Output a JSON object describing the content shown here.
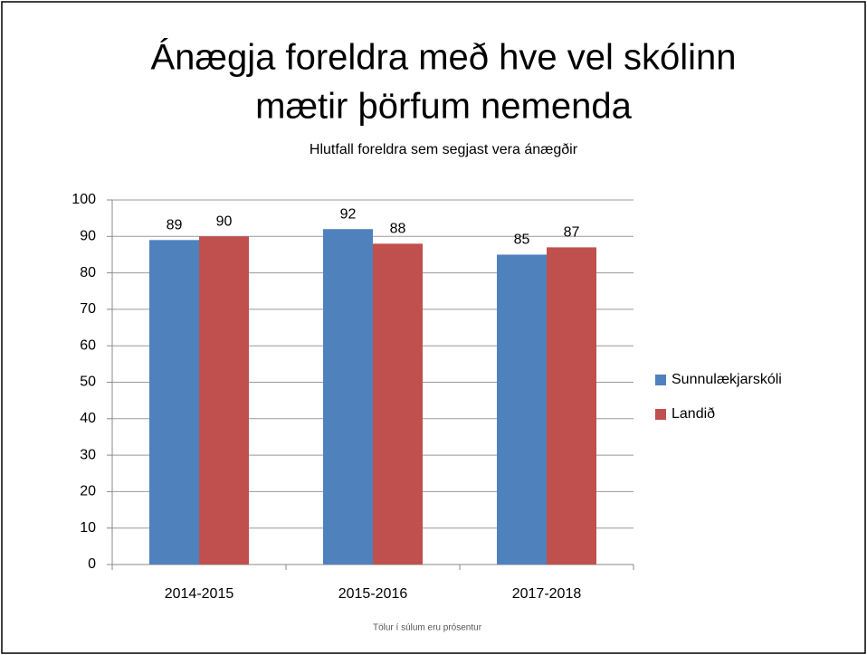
{
  "chart_data": {
    "type": "bar",
    "title": [
      "Ánægja foreldra með hve vel skólinn",
      "mætir þörfum nemenda"
    ],
    "subtitle": "Hlutfall foreldra sem segjast vera ánægðir",
    "annotation": "Tölur í súlum eru prósentur",
    "categories": [
      "2014-2015",
      "2015-2016",
      "2017-2018"
    ],
    "series": [
      {
        "name": "Sunnulækjarskóli",
        "color": "#4f81bd",
        "values": [
          89,
          92,
          85
        ]
      },
      {
        "name": "Landið",
        "color": "#c0504d",
        "values": [
          90,
          88,
          87
        ]
      }
    ],
    "ylim": [
      0,
      100
    ],
    "yticks": [
      0,
      10,
      20,
      30,
      40,
      50,
      60,
      70,
      80,
      90,
      100
    ],
    "grid": true,
    "legend": "right"
  }
}
